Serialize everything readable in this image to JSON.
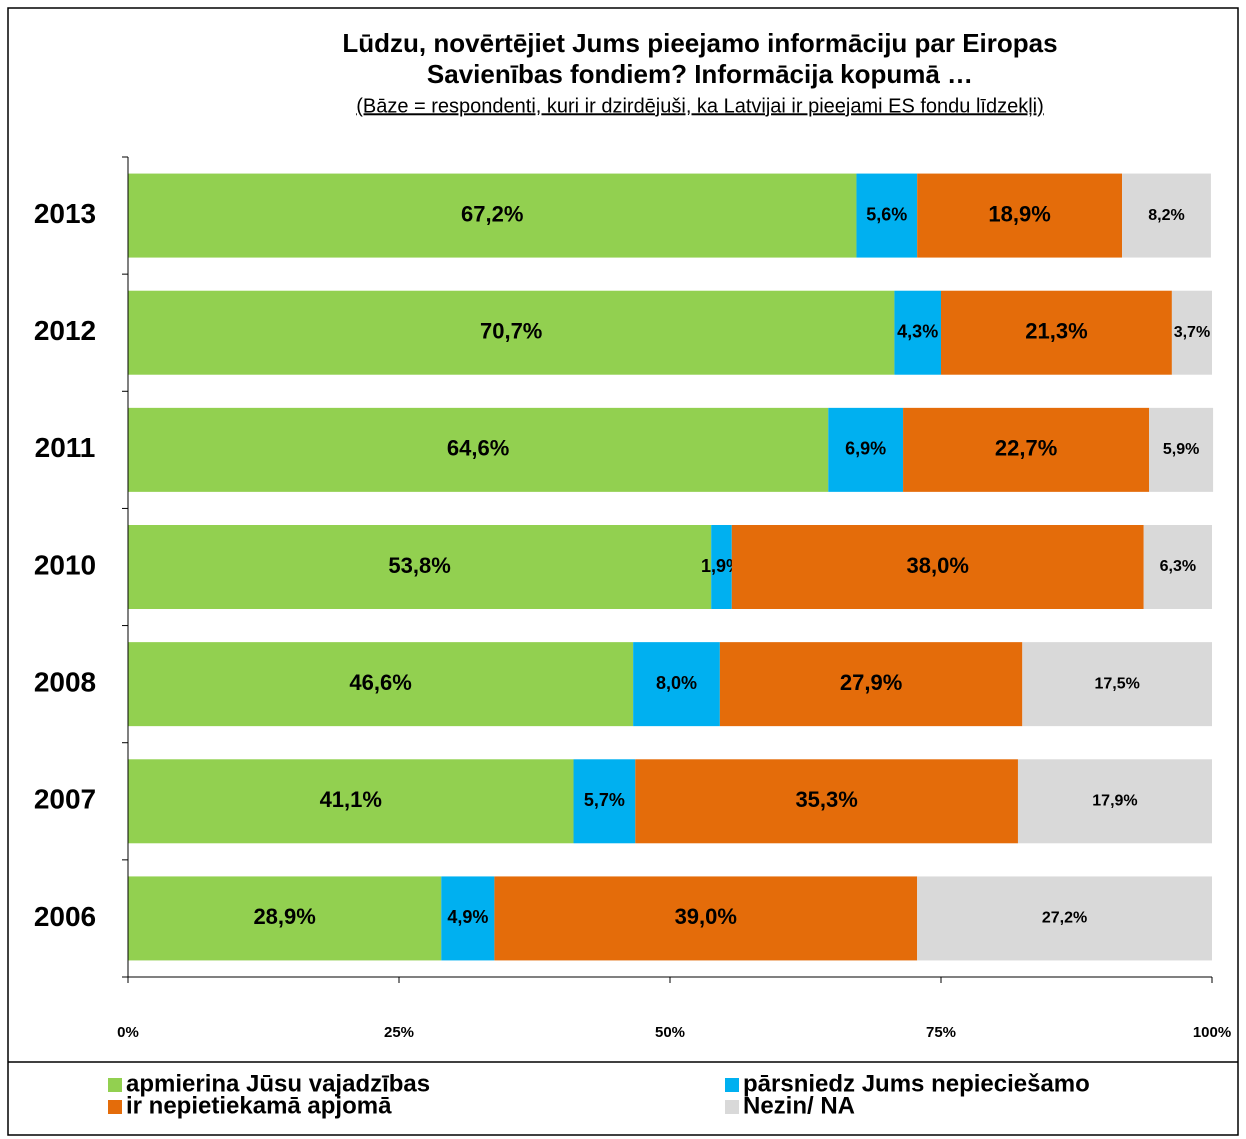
{
  "chart_data": {
    "type": "stacked_barh",
    "title": "Lūdzu, novērtējiet Jums pieejamo informāciju par Eiropas",
    "title_line2": "Savienības fondiem? Informācija kopumā …",
    "subtitle": "(Bāze = respondenti, kuri ir dzirdējuši, ka Latvijai ir pieejami ES fondu līdzekļi)",
    "categories": [
      "2013",
      "2012",
      "2011",
      "2010",
      "2008",
      "2007",
      "2006"
    ],
    "series": [
      {
        "name": "apmierina Jūsu vajadzības",
        "color": "#92d050",
        "values": [
          67.2,
          70.7,
          64.6,
          53.8,
          46.6,
          41.1,
          28.9
        ],
        "value_labels": [
          "67,2%",
          "70,7%",
          "64,6%",
          "53,8%",
          "46,6%",
          "41,1%",
          "28,9%"
        ]
      },
      {
        "name": "pārsniedz Jums nepieciešamo",
        "color": "#00b0f0",
        "values": [
          5.6,
          4.3,
          6.9,
          1.9,
          8.0,
          5.7,
          4.9
        ],
        "value_labels": [
          "5,6%",
          "4,3%",
          "6,9%",
          "1,9%",
          "8,0%",
          "5,7%",
          "4,9%"
        ]
      },
      {
        "name": "ir nepietiekamā apjomā",
        "color": "#e46c0a",
        "values": [
          18.9,
          21.3,
          22.7,
          38.0,
          27.9,
          35.3,
          39.0
        ],
        "value_labels": [
          "18,9%",
          "21,3%",
          "22,7%",
          "38,0%",
          "27,9%",
          "35,3%",
          "39,0%"
        ]
      },
      {
        "name": "Nezin/ NA",
        "color": "#d9d9d9",
        "values": [
          8.2,
          3.7,
          5.9,
          6.3,
          17.5,
          17.9,
          27.2
        ],
        "value_labels": [
          "8,2%",
          "3,7%",
          "5,9%",
          "6,3%",
          "17,5%",
          "17,9%",
          "27,2%"
        ]
      }
    ],
    "xlim": [
      0,
      100
    ],
    "xticks": [
      {
        "value": 0,
        "label": "0%"
      },
      {
        "value": 25,
        "label": "25%"
      },
      {
        "value": 50,
        "label": "50%"
      },
      {
        "value": 75,
        "label": "75%"
      },
      {
        "value": 100,
        "label": "100%"
      }
    ],
    "legend": "bottom"
  }
}
